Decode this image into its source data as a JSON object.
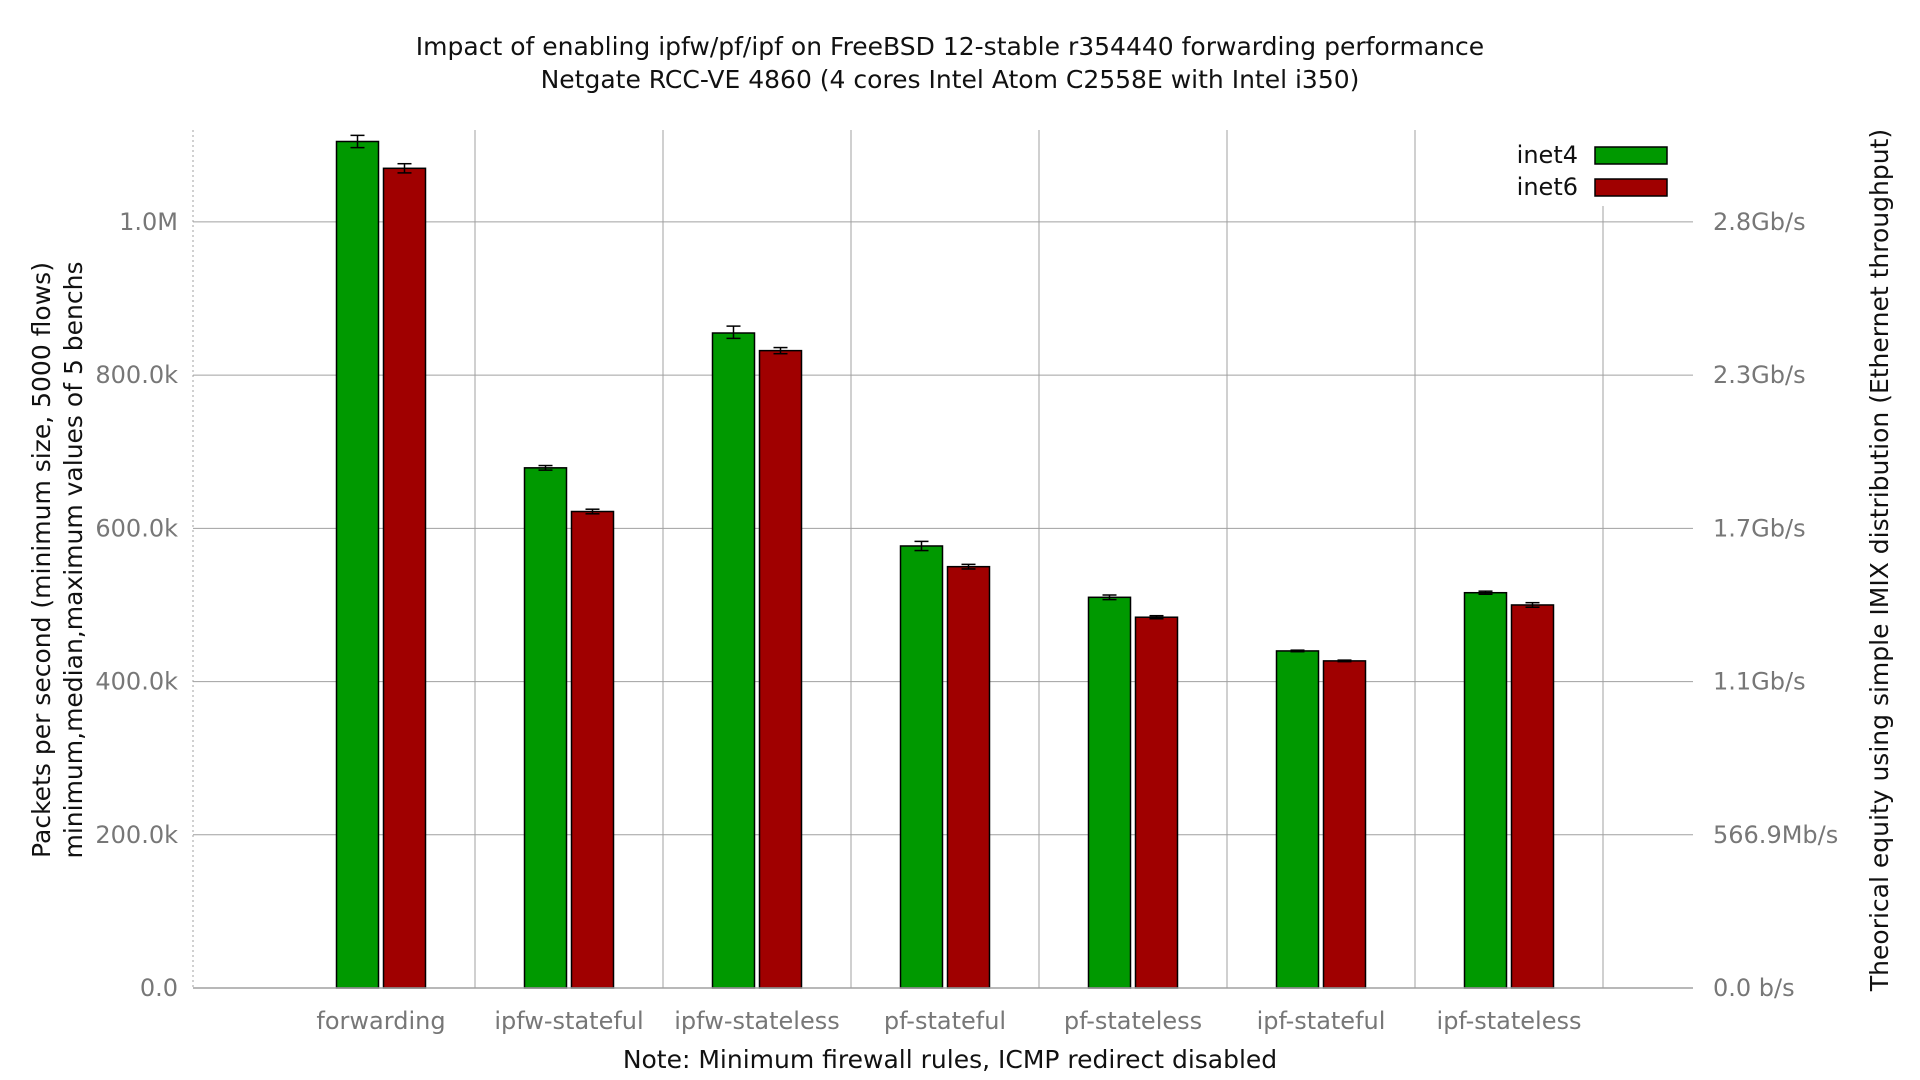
{
  "chart_data": {
    "type": "bar",
    "title": "Impact of enabling ipfw/pf/ipf on FreeBSD 12-stable r354440 forwarding performance",
    "subtitle": "Netgate RCC-VE 4860 (4 cores Intel Atom C2558E with Intel i350)",
    "xlabel": "Note: Minimum firewall rules, ICMP redirect disabled",
    "ylabel": "Packets per second (minimum size, 5000 flows)",
    "ylabel2": "minimum,median,maximum values of 5 benchs",
    "y2label": "Theorical equity using simple IMIX distribution (Ethernet throughput)",
    "ylim": [
      0,
      1120000
    ],
    "y_ticks": [
      {
        "value": 0,
        "label": "0.0"
      },
      {
        "value": 200000,
        "label": "200.0k"
      },
      {
        "value": 400000,
        "label": "400.0k"
      },
      {
        "value": 600000,
        "label": "600.0k"
      },
      {
        "value": 800000,
        "label": "800.0k"
      },
      {
        "value": 1000000,
        "label": "1.0M"
      }
    ],
    "y2_ticks": [
      {
        "value": 0,
        "label": "0.0 b/s"
      },
      {
        "value": 200000,
        "label": "566.9Mb/s"
      },
      {
        "value": 400000,
        "label": "1.1Gb/s"
      },
      {
        "value": 600000,
        "label": "1.7Gb/s"
      },
      {
        "value": 800000,
        "label": "2.3Gb/s"
      },
      {
        "value": 1000000,
        "label": "2.8Gb/s"
      }
    ],
    "categories": [
      "forwarding",
      "ipfw-stateful",
      "ipfw-stateless",
      "pf-stateful",
      "pf-stateless",
      "ipf-stateful",
      "ipf-stateless"
    ],
    "series": [
      {
        "name": "inet4",
        "color": "#009900",
        "values": [
          1105000,
          679000,
          855000,
          577000,
          510000,
          440000,
          516000
        ],
        "min": [
          1097000,
          676000,
          848000,
          571000,
          507000,
          439000,
          514000
        ],
        "max": [
          1113000,
          682000,
          864000,
          583000,
          513000,
          441000,
          518000
        ]
      },
      {
        "name": "inet6",
        "color": "#a00000",
        "values": [
          1070000,
          622000,
          832000,
          550000,
          484000,
          427000,
          500000
        ],
        "min": [
          1064000,
          619000,
          828000,
          547000,
          482000,
          426000,
          497000
        ],
        "max": [
          1076000,
          625000,
          836000,
          553000,
          486000,
          428000,
          503000
        ]
      }
    ],
    "grid": true,
    "legend": "top-right"
  }
}
